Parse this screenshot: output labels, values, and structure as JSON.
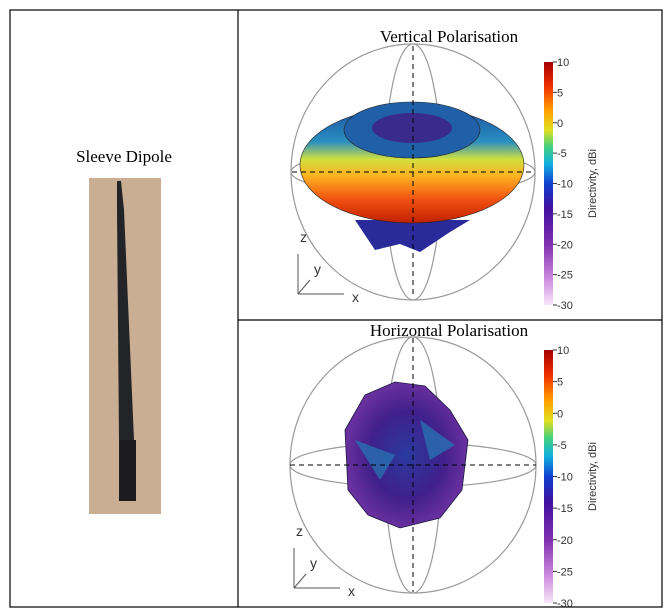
{
  "left": {
    "title": "Sleeve Dipole"
  },
  "panels": [
    {
      "title": "Vertical Polarisation",
      "colorbar": {
        "label": "Directivity, dBi",
        "ticks": [
          "10",
          "5",
          "0",
          "-5",
          "-10",
          "-15",
          "-20",
          "-25",
          "-30"
        ]
      },
      "axes": {
        "z": "z",
        "y": "y",
        "x": "x"
      }
    },
    {
      "title": "Horizontal Polarisation",
      "colorbar": {
        "label": "Directivity, dBi",
        "ticks": [
          "10",
          "5",
          "0",
          "-5",
          "-10",
          "-15",
          "-20",
          "-25",
          "-30"
        ]
      },
      "axes": {
        "z": "z",
        "y": "y",
        "x": "x"
      }
    }
  ]
}
